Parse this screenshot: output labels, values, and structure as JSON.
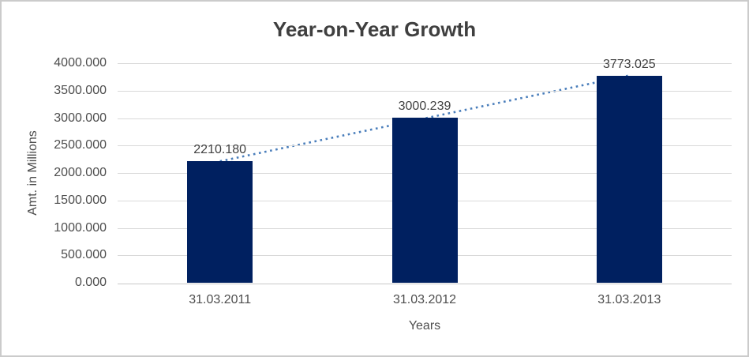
{
  "chart_data": {
    "type": "bar",
    "title": "Year-on-Year Growth",
    "xlabel": "Years",
    "ylabel": "Amt. in Millions",
    "categories": [
      "31.03.2011",
      "31.03.2012",
      "31.03.2013"
    ],
    "values": [
      2210.18,
      3000.239,
      3773.025
    ],
    "value_labels": [
      "2210.180",
      "3000.239",
      "3773.025"
    ],
    "ylim": [
      0,
      4000
    ],
    "ytick_step": 500,
    "ytick_labels": [
      "0.000",
      "500.000",
      "1000.000",
      "1500.000",
      "2000.000",
      "2500.000",
      "3000.000",
      "3500.000",
      "4000.000"
    ],
    "grid": "horizontal",
    "legend": "none",
    "trendline": {
      "type": "linear",
      "style": "dotted",
      "color": "#4a7ebb"
    },
    "colors": {
      "bar": "#002060",
      "gridline": "#d9d9d9",
      "axis_line": "#c9c9c9",
      "title_text": "#3f3f3f",
      "axis_text": "#4d4d4d",
      "data_label_text": "#404040"
    }
  }
}
